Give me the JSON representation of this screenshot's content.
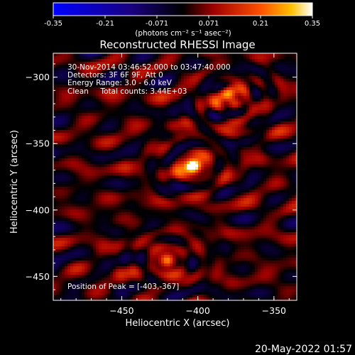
{
  "colorbar": {
    "ticks": [
      "-0.35",
      "-0.21",
      "-0.071",
      "0.071",
      "0.21",
      "0.35"
    ],
    "unit_label": "(photons cm⁻² s⁻¹ asec⁻²)",
    "range": [
      -0.35,
      0.35
    ]
  },
  "chart_data": {
    "type": "heatmap",
    "title": "Reconstructed RHESSI Image",
    "xlabel": "Heliocentric X (arcsec)",
    "ylabel": "Heliocentric Y (arcsec)",
    "xlim": [
      -495,
      -335
    ],
    "ylim": [
      -468,
      -282
    ],
    "xticks": [
      -450,
      -400,
      -350
    ],
    "yticks": [
      -300,
      -350,
      -400,
      -450
    ],
    "info_lines": [
      "30-Nov-2014 03:46:52.000 to 03:47:40.000",
      "Detectors: 3F 6F 9F, Att 0",
      "Energy Range: 3.0 - 6.0 keV",
      "Clean     Total counts: 3.44E+03"
    ],
    "peak_label": "Position of Peak = [-403,-367]",
    "sources": [
      {
        "x": -403,
        "y": -367,
        "peak": 0.35
      },
      {
        "x": -420,
        "y": -438,
        "peak": 0.2
      },
      {
        "x": -376,
        "y": -320,
        "peak": 0.13
      },
      {
        "x": -380,
        "y": -313,
        "peak": 0.12
      }
    ]
  },
  "footer_date": "20-May-2022 01:57"
}
